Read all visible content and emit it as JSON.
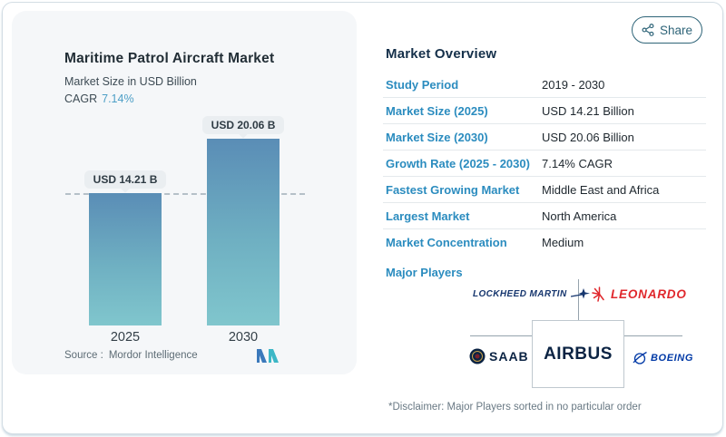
{
  "share": {
    "label": "Share"
  },
  "chart_panel": {
    "title": "Maritime Patrol Aircraft Market",
    "subtitle": "Market Size in USD Billion",
    "cagr_label": "CAGR",
    "cagr_value": "7.14%",
    "source_label": "Source :",
    "source_value": "Mordor Intelligence"
  },
  "chart_data": {
    "type": "bar",
    "title": "Maritime Patrol Aircraft Market",
    "ylabel": "Market Size in USD Billion",
    "categories": [
      "2025",
      "2030"
    ],
    "values": [
      14.21,
      20.06
    ],
    "value_labels": [
      "USD 14.21 B",
      "USD 20.06 B"
    ],
    "ylim": [
      0,
      22
    ],
    "grid": false,
    "reference_line": {
      "y": 14.21,
      "style": "dashed"
    },
    "bar_gradient_top": "#5a8db6",
    "bar_gradient_bottom": "#80c6cd"
  },
  "overview": {
    "heading": "Market Overview",
    "rows": [
      {
        "label": "Study Period",
        "value": "2019 - 2030"
      },
      {
        "label": "Market Size (2025)",
        "value": "USD 14.21 Billion"
      },
      {
        "label": "Market Size (2030)",
        "value": "USD 20.06 Billion"
      },
      {
        "label": "Growth Rate (2025 - 2030)",
        "value": "7.14% CAGR"
      },
      {
        "label": "Fastest Growing Market",
        "value": "Middle East and Africa"
      },
      {
        "label": "Largest Market",
        "value": "North America"
      },
      {
        "label": "Market Concentration",
        "value": "Medium"
      }
    ],
    "major_players_label": "Major Players",
    "players": {
      "lockheed": "LOCKHEED MARTIN",
      "leonardo": "LEONARDO",
      "saab": "SAAB",
      "airbus": "AIRBUS",
      "boeing": "BOEING"
    },
    "disclaimer": "*Disclaimer: Major Players sorted in no particular order"
  },
  "colors": {
    "label_blue": "#2b8cbf",
    "cagr_blue": "#4d9fc6",
    "share_teal": "#2e6478",
    "panel_bg": "#f5f7f9",
    "leonardo_red": "#e0272c",
    "airbus_navy": "#0b2343",
    "boeing_blue": "#0039a6",
    "lockheed_navy": "#16366e"
  }
}
